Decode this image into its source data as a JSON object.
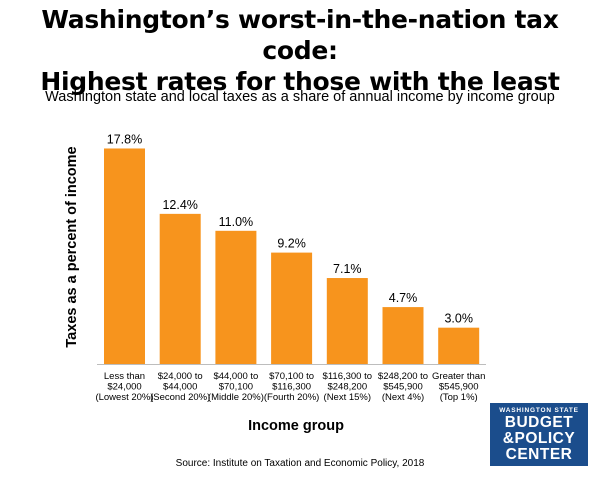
{
  "title_line1": "Washington’s worst-in-the-nation tax code:",
  "title_line2": "Highest rates for those with the least",
  "subtitle": "Washington state and local taxes as a share of annual income by income group",
  "source": "Source: Institute on Taxation and Economic Policy, 2018",
  "logo": {
    "line1": "WASHINGTON STATE",
    "line2": "BUDGET",
    "line3": "&POLICY",
    "line4": "CENTER"
  },
  "colors": {
    "bar": "#f7941d",
    "logo_bg": "#1b4d8c"
  },
  "chart_data": {
    "type": "bar",
    "xlabel": "Income group",
    "ylabel": "Taxes as a percent of income",
    "ylim": [
      0,
      18.5
    ],
    "grid": false,
    "categories": [
      [
        "Less than",
        "$24,000",
        "(Lowest 20%)"
      ],
      [
        "$24,000 to",
        "$44,000",
        "(Second 20%)"
      ],
      [
        "$44,000 to",
        "$70,100",
        "(Middle 20%)"
      ],
      [
        "$70,100 to",
        "$116,300",
        "(Fourth 20%)"
      ],
      [
        "$116,300 to",
        "$248,200",
        "(Next 15%)"
      ],
      [
        "$248,200 to",
        "$545,900",
        "(Next 4%)"
      ],
      [
        "Greater than",
        "$545,900",
        "(Top 1%)"
      ]
    ],
    "values": [
      17.8,
      12.4,
      11.0,
      9.2,
      7.1,
      4.7,
      3.0
    ],
    "data_labels": [
      "17.8%",
      "12.4%",
      "11.0%",
      "9.2%",
      "7.1%",
      "4.7%",
      "3.0%"
    ]
  }
}
